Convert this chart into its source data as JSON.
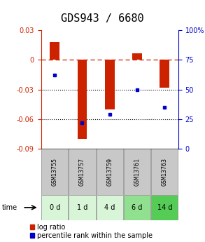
{
  "title": "GDS943 / 6680",
  "samples": [
    "GSM13755",
    "GSM13757",
    "GSM13759",
    "GSM13761",
    "GSM13763"
  ],
  "time_labels": [
    "0 d",
    "1 d",
    "4 d",
    "6 d",
    "14 d"
  ],
  "log_ratio": [
    0.018,
    -0.08,
    -0.05,
    0.007,
    -0.028
  ],
  "percentile_rank": [
    62,
    22,
    29,
    50,
    35
  ],
  "bar_color": "#cc2200",
  "dot_color": "#0000cc",
  "ylim_left": [
    -0.09,
    0.03
  ],
  "ylim_right": [
    0,
    100
  ],
  "yticks_left": [
    0.03,
    0,
    -0.03,
    -0.06,
    -0.09
  ],
  "yticks_right": [
    100,
    75,
    50,
    25,
    0
  ],
  "hline_zero_color": "#cc2200",
  "hline_dotted_color": "#000000",
  "bg_plot": "#ffffff",
  "bg_sample_row": "#c8c8c8",
  "bg_time_row_colors": [
    "#d8f5d8",
    "#d8f5d8",
    "#d8f5d8",
    "#90e090",
    "#55cc55"
  ],
  "bar_width": 0.35,
  "legend_log_label": "log ratio",
  "legend_pct_label": "percentile rank within the sample",
  "time_arrow_label": "time",
  "title_fontsize": 11,
  "tick_fontsize": 7,
  "legend_fontsize": 7
}
